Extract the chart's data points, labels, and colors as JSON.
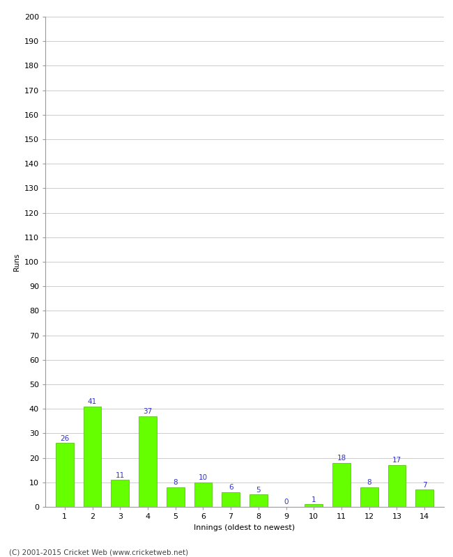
{
  "xlabel": "Innings (oldest to newest)",
  "ylabel": "Runs",
  "categories": [
    "1",
    "2",
    "3",
    "4",
    "5",
    "6",
    "7",
    "8",
    "9",
    "10",
    "11",
    "12",
    "13",
    "14"
  ],
  "values": [
    26,
    41,
    11,
    37,
    8,
    10,
    6,
    5,
    0,
    1,
    18,
    8,
    17,
    7
  ],
  "bar_color": "#66ff00",
  "bar_edge_color": "#44bb00",
  "label_color": "#3333cc",
  "ylim": [
    0,
    200
  ],
  "yticks": [
    0,
    10,
    20,
    30,
    40,
    50,
    60,
    70,
    80,
    90,
    100,
    110,
    120,
    130,
    140,
    150,
    160,
    170,
    180,
    190,
    200
  ],
  "grid_color": "#cccccc",
  "background_color": "#ffffff",
  "footer": "(C) 2001-2015 Cricket Web (www.cricketweb.net)",
  "label_fontsize": 7.5,
  "axis_fontsize": 8,
  "ylabel_fontsize": 7.5,
  "xlabel_fontsize": 8,
  "footer_fontsize": 7.5
}
